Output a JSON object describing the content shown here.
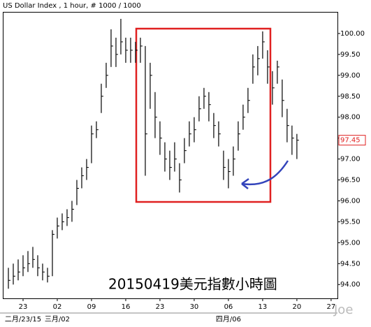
{
  "chart_data": {
    "type": "ohlc",
    "title": "US Dollar Index , 1 hour, # 1000 / 1000",
    "annotation": "20150419美元指數小時圖",
    "watermark": "Joe",
    "x": [
      -3,
      -2,
      -1,
      0,
      1,
      2,
      3,
      4,
      5,
      6,
      7,
      8,
      9,
      10,
      11,
      12,
      13,
      14,
      15,
      16,
      17,
      18,
      19,
      20,
      21,
      22,
      23,
      24,
      25,
      26,
      27,
      28,
      29,
      30,
      31,
      32,
      33,
      34,
      35,
      36,
      37,
      38,
      39,
      40,
      41,
      42,
      43,
      44,
      45,
      46,
      47,
      48,
      49,
      50,
      51,
      52,
      53,
      54,
      55,
      56
    ],
    "high": [
      94.4,
      94.5,
      94.6,
      94.7,
      94.8,
      94.9,
      94.7,
      94.5,
      94.4,
      95.3,
      95.6,
      95.7,
      95.8,
      96.0,
      96.5,
      96.8,
      97.0,
      97.8,
      97.9,
      98.8,
      99.3,
      100.1,
      99.9,
      100.35,
      99.9,
      99.9,
      99.8,
      99.9,
      99.7,
      99.3,
      98.6,
      97.9,
      97.4,
      97.2,
      97.4,
      96.9,
      97.5,
      97.9,
      98.0,
      98.5,
      98.7,
      98.6,
      98.1,
      97.9,
      97.2,
      97.0,
      97.3,
      97.9,
      98.3,
      98.7,
      99.5,
      99.7,
      100.05,
      99.6,
      99.1,
      99.35,
      98.9,
      98.2,
      97.8,
      97.6
    ],
    "low": [
      93.9,
      94.0,
      94.1,
      94.2,
      94.3,
      94.4,
      94.2,
      94.1,
      94.05,
      94.2,
      95.1,
      95.3,
      95.4,
      95.5,
      95.9,
      96.3,
      96.5,
      96.9,
      97.5,
      98.1,
      98.7,
      99.2,
      99.2,
      99.5,
      99.3,
      99.3,
      99.3,
      99.3,
      96.6,
      98.2,
      97.5,
      97.1,
      96.7,
      96.5,
      96.7,
      96.2,
      96.9,
      97.3,
      97.4,
      97.9,
      98.2,
      97.9,
      97.5,
      97.3,
      96.5,
      96.3,
      96.6,
      97.2,
      97.7,
      98.1,
      98.8,
      99.0,
      99.4,
      98.8,
      98.3,
      98.8,
      98.0,
      97.4,
      97.1,
      97.0
    ],
    "close": [
      94.1,
      94.2,
      94.3,
      94.4,
      94.5,
      94.6,
      94.4,
      94.3,
      94.2,
      95.2,
      95.4,
      95.5,
      95.6,
      95.8,
      96.3,
      96.6,
      96.8,
      97.6,
      97.7,
      98.5,
      99.0,
      99.7,
      99.5,
      99.8,
      99.6,
      99.6,
      99.6,
      99.7,
      97.6,
      99.0,
      98.0,
      97.5,
      97.0,
      96.8,
      97.0,
      96.5,
      97.2,
      97.6,
      97.7,
      98.2,
      98.5,
      98.3,
      97.8,
      97.6,
      96.8,
      96.7,
      97.0,
      97.6,
      98.0,
      98.4,
      99.2,
      99.4,
      99.8,
      99.2,
      98.7,
      99.2,
      98.4,
      97.8,
      97.5,
      97.45
    ],
    "color": "#000000",
    "last_price": {
      "value": 97.45,
      "label": "97.45"
    },
    "xlim": [
      -4,
      64.3
    ],
    "xticks": [
      {
        "value": 0,
        "label": "23"
      },
      {
        "value": 7,
        "label": "02"
      },
      {
        "value": 14,
        "label": "09"
      },
      {
        "value": 21,
        "label": "16"
      },
      {
        "value": 28,
        "label": "23"
      },
      {
        "value": 35,
        "label": "30"
      },
      {
        "value": 42,
        "label": "06"
      },
      {
        "value": 49,
        "label": "13"
      },
      {
        "value": 56,
        "label": "20"
      },
      {
        "value": 63,
        "label": "27"
      }
    ],
    "x_sublabels": [
      {
        "value": 0,
        "label": "二月/23/15"
      },
      {
        "value": 7,
        "label": "三月/02"
      },
      {
        "value": 42,
        "label": "四月/06"
      }
    ],
    "ylim": [
      93.67,
      100.5
    ],
    "yticks": [
      {
        "value": 94,
        "label": "94.00"
      },
      {
        "value": 94.5,
        "label": "94.50"
      },
      {
        "value": 95,
        "label": "95.00"
      },
      {
        "value": 95.5,
        "label": "95.50"
      },
      {
        "value": 96,
        "label": "96.00"
      },
      {
        "value": 96.5,
        "label": "96.50"
      },
      {
        "value": 97,
        "label": "97.00"
      },
      {
        "value": 97.5,
        "label": "97.50"
      },
      {
        "value": 98,
        "label": "98.00"
      },
      {
        "value": 98.5,
        "label": "98.50"
      },
      {
        "value": 99,
        "label": "99.00"
      },
      {
        "value": 99.5,
        "label": "99.50"
      },
      {
        "value": 100,
        "label": "100.00"
      }
    ]
  }
}
